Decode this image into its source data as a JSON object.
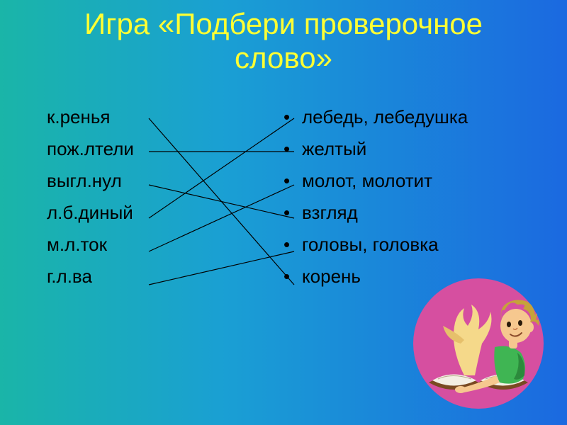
{
  "title": {
    "line1": "Игра «Подбери проверочное",
    "line2": "слово»",
    "color": "#ffff33",
    "fontsize": 42,
    "weight": "400"
  },
  "left": {
    "items": [
      "к.ренья",
      "пож.лтели",
      "выгл.нул",
      "л.б.диный",
      "м.л.ток",
      "г.л.ва"
    ],
    "color": "#000000",
    "fontsize": 26,
    "bullet": ""
  },
  "right": {
    "items": [
      "лебедь, лебедушка",
      "желтый",
      "молот, молотит",
      "взгляд",
      "головы, головка",
      "корень"
    ],
    "color": "#000000",
    "fontsize": 26,
    "bullet": "•"
  },
  "lines": {
    "stroke": "#000000",
    "width": 1.2,
    "pairs": [
      {
        "from": 0,
        "to": 5
      },
      {
        "from": 1,
        "to": 1
      },
      {
        "from": 2,
        "to": 3
      },
      {
        "from": 3,
        "to": 0
      },
      {
        "from": 4,
        "to": 2
      },
      {
        "from": 5,
        "to": 4
      }
    ]
  },
  "geometry": {
    "left_x_end": 210,
    "right_x_start": 415,
    "row_y_start": 167,
    "row_spacing": 47
  },
  "illustration": {
    "bg": "#d64fa0",
    "skin": "#f6c88f",
    "hair": "#c6a23a",
    "shirt": "#3fb553",
    "shirt_dark": "#2c8a3c",
    "book_pages": "#f4efe4",
    "book_cover": "#7a4a22",
    "bird_body": "#f5d98a",
    "bird_wing": "#e6c06b"
  }
}
